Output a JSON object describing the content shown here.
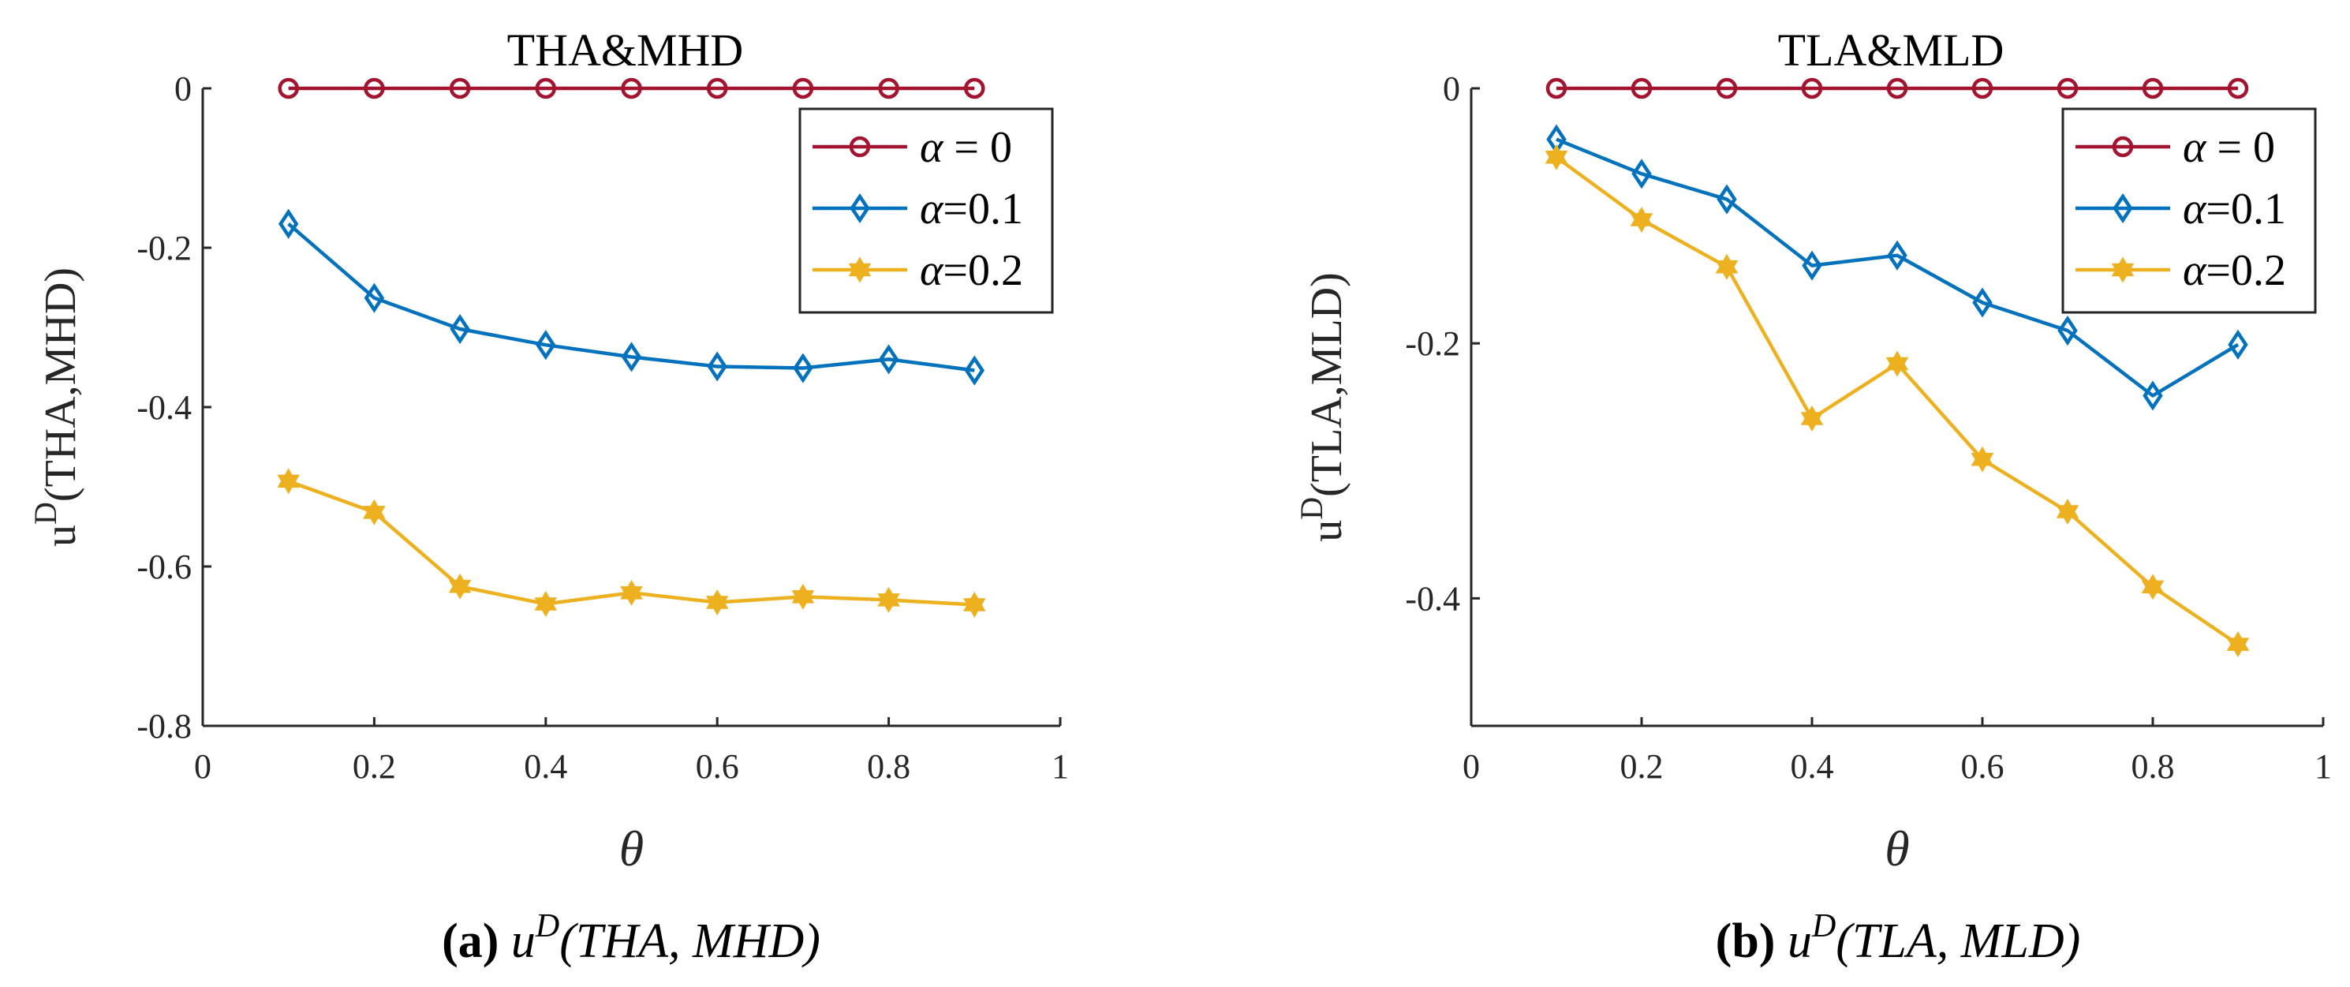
{
  "chart_data": [
    {
      "type": "line",
      "title": "THA&MHD",
      "xlabel": "θ",
      "ylabel_main": "u",
      "ylabel_sup": "D",
      "ylabel_args": "(THA,MHD)",
      "xlim": [
        0,
        1
      ],
      "ylim": [
        -0.8,
        0
      ],
      "xticks": [
        0,
        0.2,
        0.4,
        0.6,
        0.8,
        1
      ],
      "xtick_labels": [
        "0",
        "0.2",
        "0.4",
        "0.6",
        "0.8",
        "1"
      ],
      "yticks": [
        -0.8,
        -0.6,
        -0.4,
        -0.2,
        0
      ],
      "ytick_labels": [
        "-0.8",
        "-0.6",
        "-0.4",
        "-0.2",
        "0"
      ],
      "legend_position": "top-right",
      "x": [
        0.1,
        0.2,
        0.3,
        0.4,
        0.5,
        0.6,
        0.7,
        0.8,
        0.9
      ],
      "series": [
        {
          "name": "α = 0",
          "legend_sym": "α",
          "legend_rest": " = 0",
          "color": "#A2142F",
          "marker": "circle",
          "values": [
            0,
            0,
            0,
            0,
            0,
            0,
            0,
            0,
            0
          ]
        },
        {
          "name": "α=0.1",
          "legend_sym": "α",
          "legend_rest": "=0.1",
          "color": "#0072BD",
          "marker": "diamond",
          "values": [
            -0.17,
            -0.263,
            -0.302,
            -0.322,
            -0.337,
            -0.349,
            -0.351,
            -0.34,
            -0.354
          ]
        },
        {
          "name": "α=0.2",
          "legend_sym": "α",
          "legend_rest": "=0.2",
          "color": "#EDB120",
          "marker": "hexagram",
          "values": [
            -0.493,
            -0.532,
            -0.625,
            -0.647,
            -0.633,
            -0.645,
            -0.638,
            -0.642,
            -0.648
          ]
        }
      ],
      "caption_tag": "(a)",
      "caption_text": "u",
      "caption_sup": "D",
      "caption_args": "(THA, MHD)"
    },
    {
      "type": "line",
      "title": "TLA&MLD",
      "xlabel": "θ",
      "ylabel_main": "u",
      "ylabel_sup": "D",
      "ylabel_args": "(TLA,MLD)",
      "xlim": [
        0,
        1
      ],
      "ylim": [
        -0.5,
        0
      ],
      "xticks": [
        0,
        0.2,
        0.4,
        0.6,
        0.8,
        1
      ],
      "xtick_labels": [
        "0",
        "0.2",
        "0.4",
        "0.6",
        "0.8",
        "1"
      ],
      "yticks": [
        -0.4,
        -0.2,
        0
      ],
      "ytick_labels": [
        "-0.4",
        "-0.2",
        "0"
      ],
      "legend_position": "top-right",
      "x": [
        0.1,
        0.2,
        0.3,
        0.4,
        0.5,
        0.6,
        0.7,
        0.8,
        0.9
      ],
      "series": [
        {
          "name": "α = 0",
          "legend_sym": "α",
          "legend_rest": " = 0",
          "color": "#A2142F",
          "marker": "circle",
          "values": [
            0,
            0,
            0,
            0,
            0,
            0,
            0,
            0,
            0
          ]
        },
        {
          "name": "α=0.1",
          "legend_sym": "α",
          "legend_rest": "=0.1",
          "color": "#0072BD",
          "marker": "diamond",
          "values": [
            -0.04,
            -0.067,
            -0.087,
            -0.139,
            -0.131,
            -0.168,
            -0.19,
            -0.241,
            -0.201
          ]
        },
        {
          "name": "α=0.2",
          "legend_sym": "α",
          "legend_rest": "=0.2",
          "color": "#EDB120",
          "marker": "hexagram",
          "values": [
            -0.054,
            -0.103,
            -0.14,
            -0.259,
            -0.216,
            -0.291,
            -0.332,
            -0.391,
            -0.436
          ]
        }
      ],
      "caption_tag": "(b)",
      "caption_text": "u",
      "caption_sup": "D",
      "caption_args": "(TLA, MLD)"
    }
  ]
}
